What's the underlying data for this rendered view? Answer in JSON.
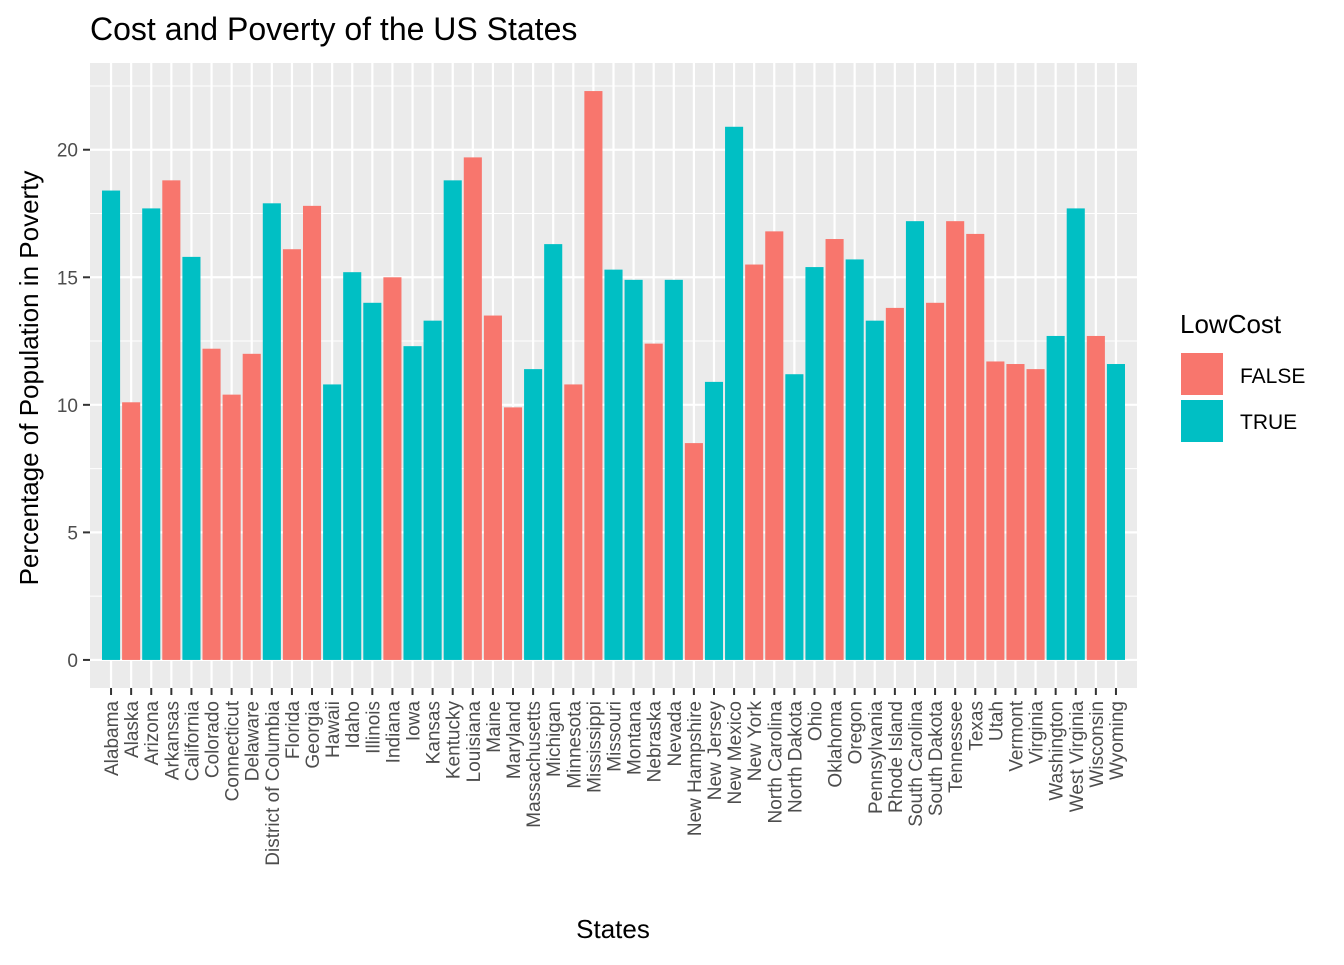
{
  "chart_data": {
    "type": "bar",
    "title": "Cost and Poverty of the US States",
    "xlabel": "States",
    "ylabel": "Percentage of Population in Poverty",
    "ylim": [
      -1.1,
      23.4
    ],
    "yticks": [
      0,
      5,
      10,
      15,
      20
    ],
    "grid": true,
    "legend": {
      "title": "LowCost",
      "placement": "right",
      "entries": [
        {
          "label": "FALSE",
          "color": "#F8766D"
        },
        {
          "label": "TRUE",
          "color": "#00BFC4"
        }
      ]
    },
    "categories": [
      "Alabama",
      "Alaska",
      "Arizona",
      "Arkansas",
      "California",
      "Colorado",
      "Connecticut",
      "Delaware",
      "District of Columbia",
      "Florida",
      "Georgia",
      "Hawaii",
      "Idaho",
      "Illinois",
      "Indiana",
      "Iowa",
      "Kansas",
      "Kentucky",
      "Louisiana",
      "Maine",
      "Maryland",
      "Massachusetts",
      "Michigan",
      "Minnesota",
      "Mississippi",
      "Missouri",
      "Montana",
      "Nebraska",
      "Nevada",
      "New Hampshire",
      "New Jersey",
      "New Mexico",
      "New York",
      "North Carolina",
      "North Dakota",
      "Ohio",
      "Oklahoma",
      "Oregon",
      "Pennsylvania",
      "Rhode Island",
      "South Carolina",
      "South Dakota",
      "Tennessee",
      "Texas",
      "Utah",
      "Vermont",
      "Virginia",
      "Washington",
      "West Virginia",
      "Wisconsin",
      "Wyoming"
    ],
    "values": [
      18.4,
      10.1,
      17.7,
      18.8,
      15.8,
      12.2,
      10.4,
      12.0,
      17.9,
      16.1,
      17.8,
      10.8,
      15.2,
      14.0,
      15.0,
      12.3,
      13.3,
      18.8,
      19.7,
      13.5,
      9.9,
      11.4,
      16.3,
      10.8,
      22.3,
      15.3,
      14.9,
      12.4,
      14.9,
      8.5,
      10.9,
      20.9,
      15.5,
      16.8,
      11.2,
      15.4,
      16.5,
      15.7,
      13.3,
      13.8,
      17.2,
      14.0,
      17.2,
      16.7,
      11.7,
      11.6,
      11.4,
      12.7,
      17.7,
      12.7,
      11.6
    ],
    "lowcost": [
      true,
      false,
      true,
      false,
      true,
      false,
      false,
      false,
      true,
      false,
      false,
      true,
      true,
      true,
      false,
      true,
      true,
      true,
      false,
      false,
      false,
      true,
      true,
      false,
      false,
      true,
      true,
      false,
      true,
      false,
      true,
      true,
      false,
      false,
      true,
      true,
      false,
      true,
      true,
      false,
      true,
      false,
      false,
      false,
      false,
      false,
      false,
      true,
      true,
      false,
      true
    ]
  }
}
